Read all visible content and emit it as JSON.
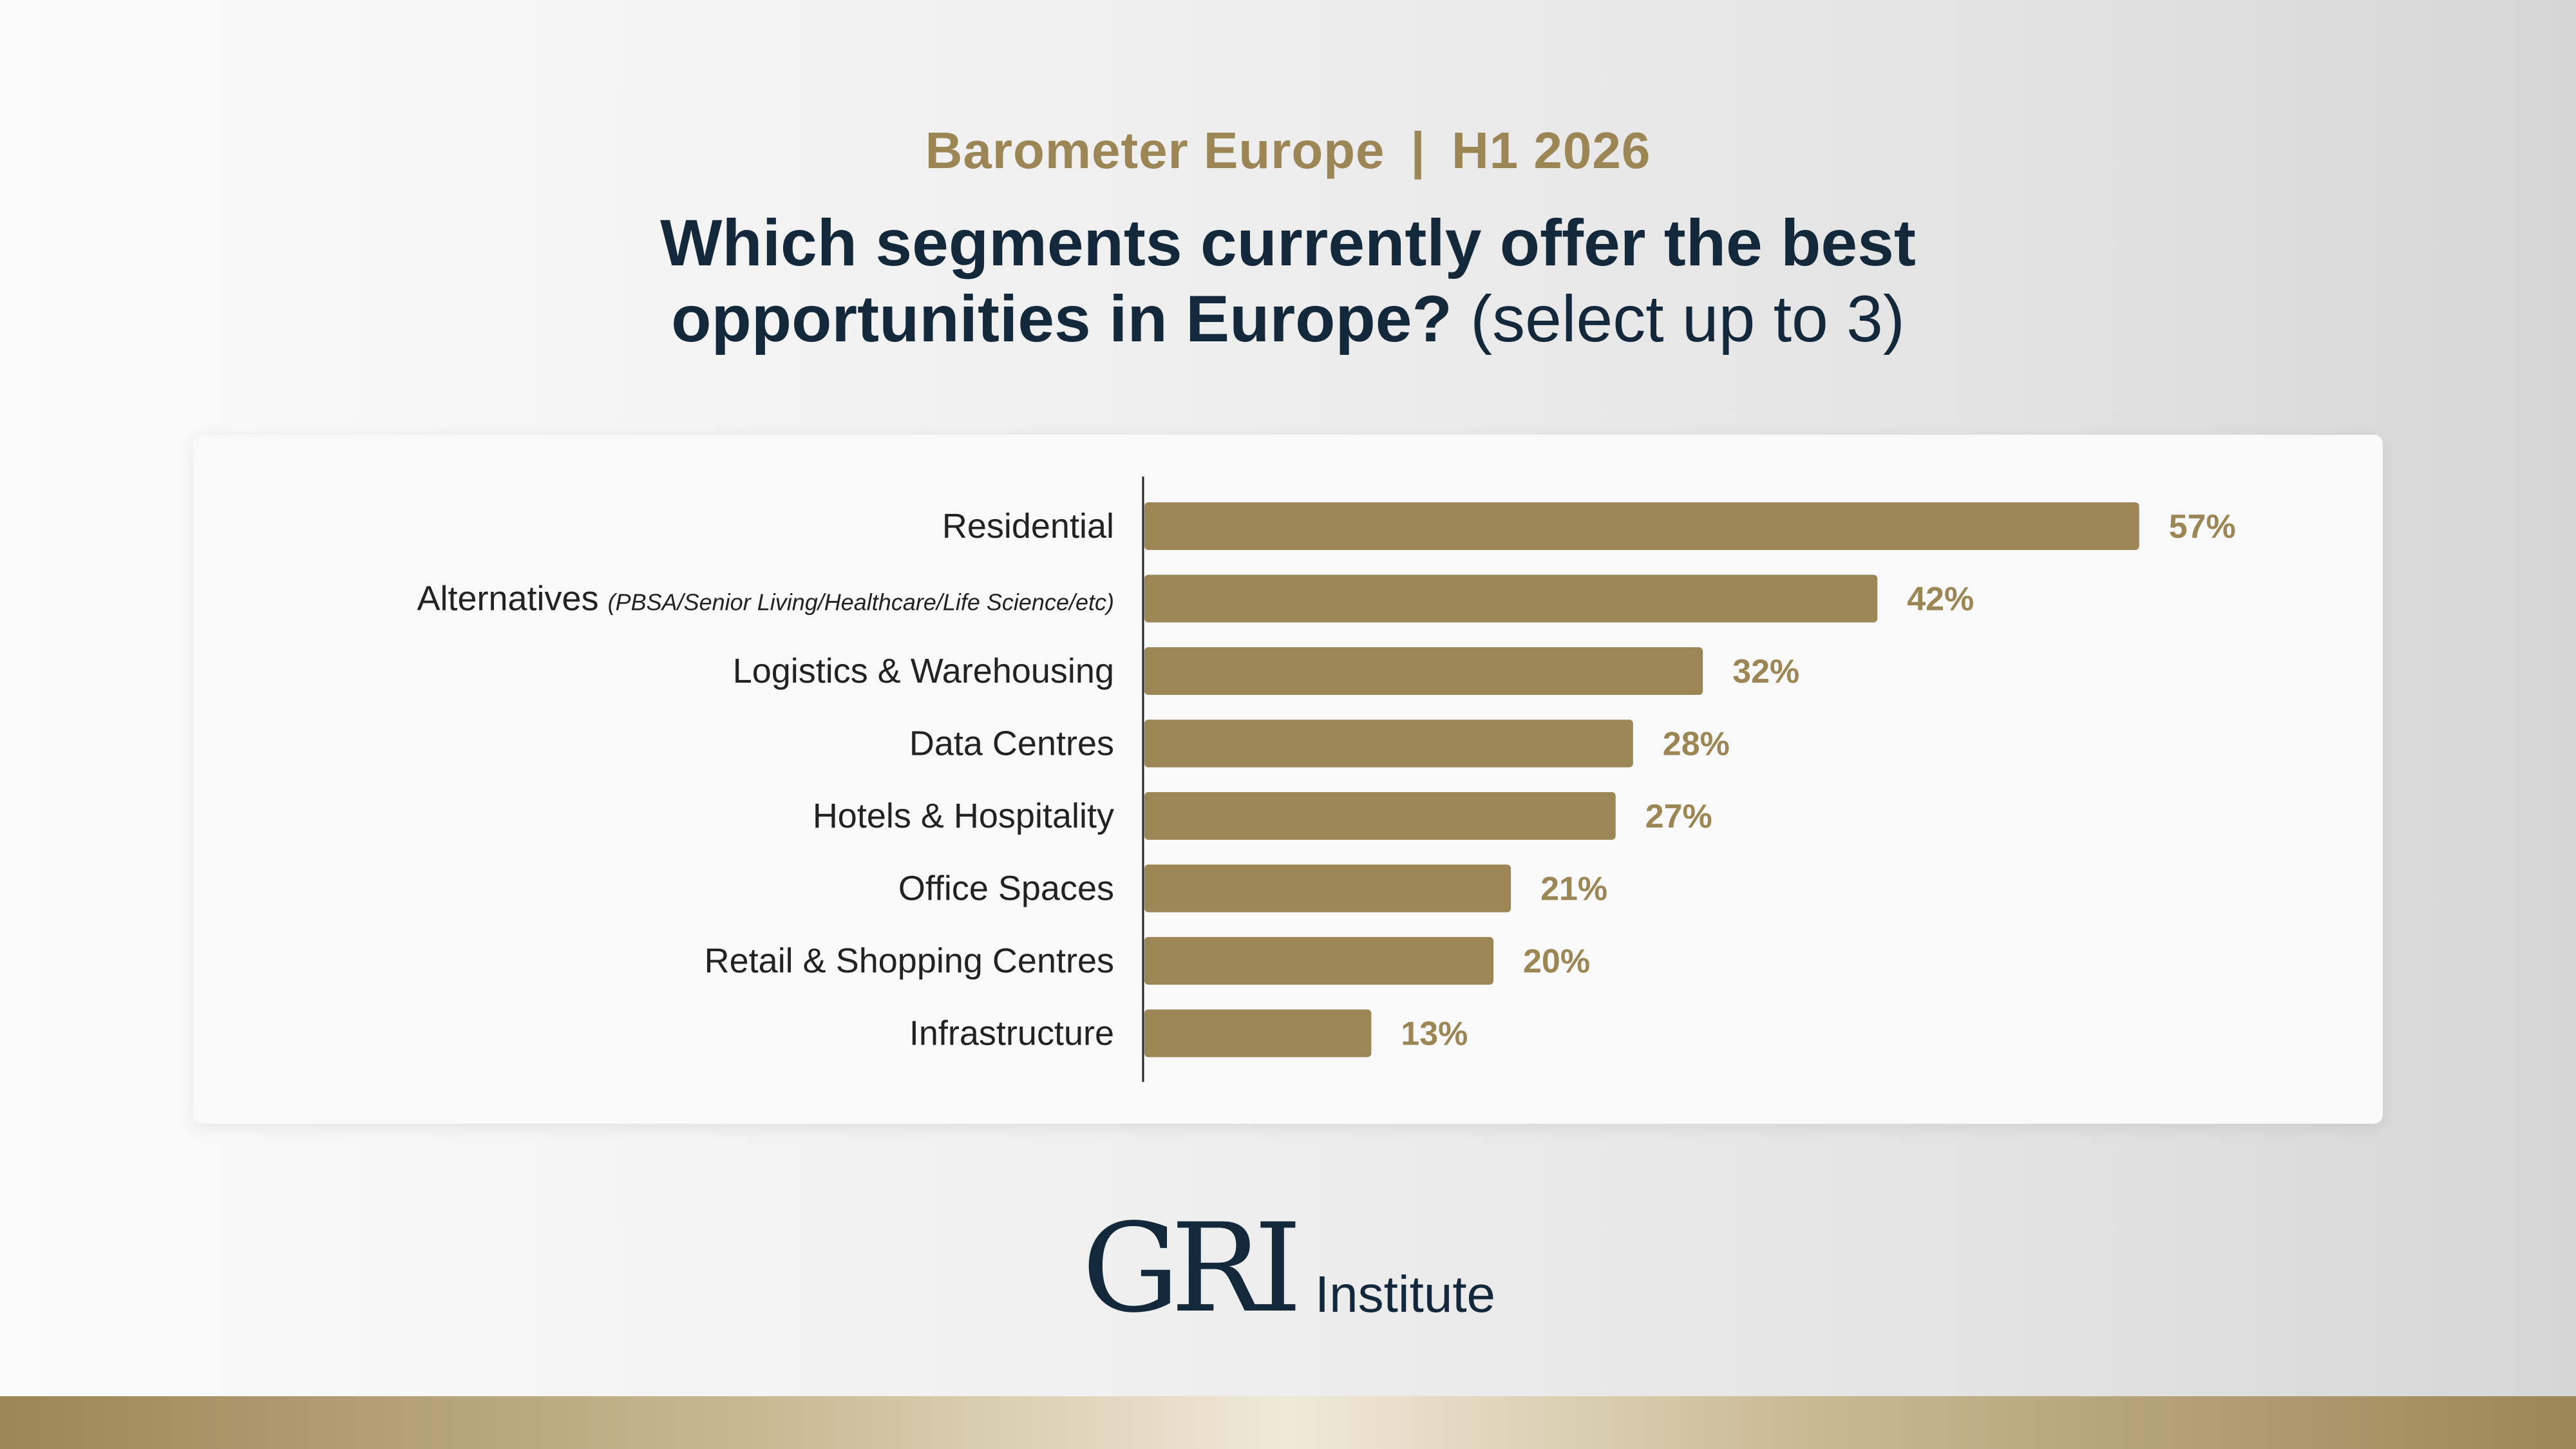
{
  "header": {
    "series_name": "Barometer Europe",
    "separator": "|",
    "period": "H1 2026",
    "question_bold_line1": "Which segments currently offer the best",
    "question_bold_line2": "opportunities in Europe?",
    "question_note": "(select up to 3)"
  },
  "brand": {
    "logo_mark": "GRI",
    "logo_text": "Institute",
    "accent_color": "#9c8655",
    "navy_color": "#14283b"
  },
  "chart_data": {
    "type": "bar",
    "orientation": "horizontal",
    "categories": [
      {
        "label": "Residential",
        "note": ""
      },
      {
        "label": "Alternatives",
        "note": "(PBSA/Senior Living/Healthcare/Life Science/etc)"
      },
      {
        "label": "Logistics & Warehousing",
        "note": ""
      },
      {
        "label": "Data Centres",
        "note": ""
      },
      {
        "label": "Hotels & Hospitality",
        "note": ""
      },
      {
        "label": "Office Spaces",
        "note": ""
      },
      {
        "label": "Retail & Shopping Centres",
        "note": ""
      },
      {
        "label": "Infrastructure",
        "note": ""
      }
    ],
    "values": [
      57,
      42,
      32,
      28,
      27,
      21,
      20,
      13
    ],
    "value_labels": [
      "57%",
      "42%",
      "32%",
      "28%",
      "27%",
      "21%",
      "20%",
      "13%"
    ],
    "unit": "%",
    "bar_color": "#9c8655",
    "grid": false,
    "legend": "none"
  }
}
